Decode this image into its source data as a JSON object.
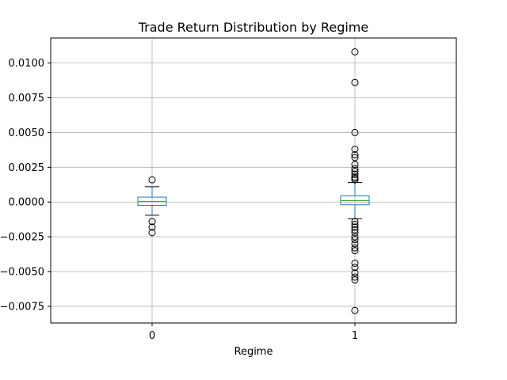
{
  "chart_data": {
    "type": "box",
    "title": "Trade Return Distribution by Regime",
    "xlabel": "Regime",
    "ylabel": "",
    "ylim": [
      -0.0087,
      0.0118
    ],
    "yticks": [
      -0.0075,
      -0.005,
      -0.0025,
      0.0,
      0.0025,
      0.005,
      0.0075,
      0.01
    ],
    "ytick_labels": [
      "−0.0075",
      "−0.0050",
      "−0.0025",
      "0.0000",
      "0.0025",
      "0.0050",
      "0.0075",
      "0.0100"
    ],
    "grid": true,
    "categories": [
      "0",
      "1"
    ],
    "boxes": [
      {
        "category": "0",
        "whisker_low": -0.00095,
        "q1": -0.00025,
        "median": 5e-05,
        "q3": 0.00035,
        "whisker_high": 0.0011,
        "outliers": [
          0.0016,
          -0.0014,
          -0.0018,
          -0.0022
        ]
      },
      {
        "category": "1",
        "whisker_low": -0.0012,
        "q1": -0.0002,
        "median": 0.0001,
        "q3": 0.00045,
        "whisker_high": 0.0014,
        "outliers": [
          0.0108,
          0.0086,
          0.005,
          0.0038,
          0.0034,
          0.0032,
          0.0027,
          0.0024,
          0.0022,
          0.002,
          0.0018,
          0.0017,
          0.0016,
          -0.0014,
          -0.0016,
          -0.0018,
          -0.002,
          -0.0022,
          -0.0025,
          -0.0027,
          -0.003,
          -0.0033,
          -0.0035,
          -0.0044,
          -0.0047,
          -0.0051,
          -0.0054,
          -0.0056,
          -0.0078
        ]
      }
    ],
    "colors": {
      "box": "#1f77b4",
      "median": "#2ca02c",
      "whisker": "#000000",
      "outlier": "#000000",
      "grid": "#b0b0b0"
    }
  }
}
